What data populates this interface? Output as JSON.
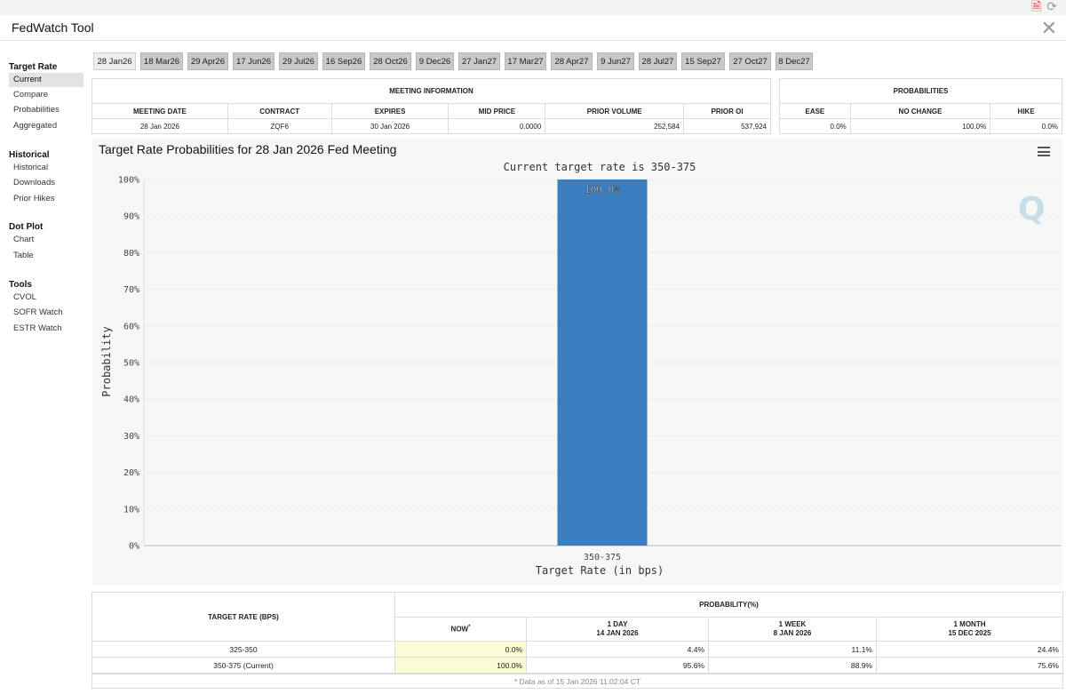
{
  "app": {
    "title": "FedWatch Tool"
  },
  "icons": {
    "pdf": "pdf-export-icon",
    "refresh": "refresh-icon",
    "close": "close-icon",
    "menu": "hamburger-menu-icon"
  },
  "sidebar": {
    "sections": [
      {
        "heading": "Target Rate",
        "items": [
          "Current",
          "Compare",
          "Probabilities",
          "Aggregated"
        ]
      },
      {
        "heading": "Historical",
        "items": [
          "Historical",
          "Downloads",
          "Prior Hikes"
        ]
      },
      {
        "heading": "Dot Plot",
        "items": [
          "Chart",
          "Table"
        ]
      },
      {
        "heading": "Tools",
        "items": [
          "CVOL",
          "SOFR Watch",
          "ESTR Watch"
        ]
      }
    ]
  },
  "meetings": [
    "28 Jan26",
    "18 Mar26",
    "29 Apr26",
    "17 Jun26",
    "29 Jul26",
    "16 Sep26",
    "28 Oct26",
    "9 Dec26",
    "27 Jan27",
    "17 Mar27",
    "28 Apr27",
    "9 Jun27",
    "28 Jul27",
    "15 Sep27",
    "27 Oct27",
    "8 Dec27"
  ],
  "meeting_info": {
    "title": "MEETING INFORMATION",
    "headers": [
      "MEETING DATE",
      "CONTRACT",
      "EXPIRES",
      "MID PRICE",
      "PRIOR VOLUME",
      "PRIOR OI"
    ],
    "values": [
      "28 Jan 2026",
      "ZQF6",
      "30 Jan 2026",
      "0.0000",
      "252,584",
      "537,924"
    ]
  },
  "probabilities": {
    "title": "PROBABILITIES",
    "headers": [
      "EASE",
      "NO CHANGE",
      "HIKE"
    ],
    "values": [
      "0.0%",
      "100.0%",
      "0.0%"
    ]
  },
  "chart": {
    "title": "Target Rate Probabilities for 28 Jan 2026 Fed Meeting"
  },
  "chart_data": {
    "type": "bar",
    "title": "Target Rate Probabilities for 28 Jan 2026 Fed Meeting",
    "subtitle": "Current target rate is 350-375",
    "categories": [
      "350-375"
    ],
    "values": [
      100.0
    ],
    "data_labels": [
      "100.0%"
    ],
    "xlabel": "Target Rate (in bps)",
    "ylabel": "Probability",
    "ylim": [
      0,
      100
    ],
    "yticks": [
      "0%",
      "10%",
      "20%",
      "30%",
      "40%",
      "50%",
      "60%",
      "70%",
      "80%",
      "90%",
      "100%"
    ],
    "bar_color": "#3a7ebf",
    "grid": true
  },
  "prob_table": {
    "col_target": "TARGET RATE (BPS)",
    "group_header": "PROBABILITY(%)",
    "col_now": "NOW",
    "now_mark": "*",
    "col_day": "1 DAY",
    "col_day_date": "14 JAN 2026",
    "col_week": "1 WEEK",
    "col_week_date": "8 JAN 2026",
    "col_month": "1 MONTH",
    "col_month_date": "15 DEC 2025",
    "rows": [
      {
        "rate": "325-350",
        "now": "0.0%",
        "day": "4.4%",
        "week": "11.1%",
        "month": "24.4%"
      },
      {
        "rate": "350-375 (Current)",
        "now": "100.0%",
        "day": "95.6%",
        "week": "88.9%",
        "month": "75.6%"
      }
    ],
    "footnote": "* Data as of 15 Jan 2026 11:02:04 CT"
  },
  "colors": {
    "bar": "#3a7ebf",
    "now_highlight": "#fbfbd4"
  }
}
